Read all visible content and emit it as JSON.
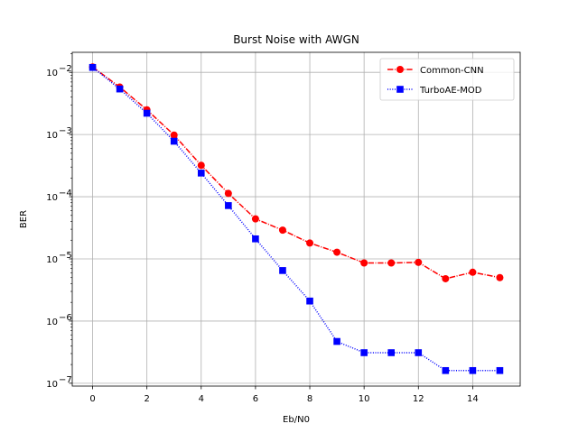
{
  "chart_data": {
    "type": "line",
    "title": "Burst Noise with AWGN",
    "xlabel": "Eb/N0",
    "ylabel": "BER",
    "yscale": "log",
    "xlim": [
      -0.75,
      15.75
    ],
    "ylim": [
      9e-08,
      0.021
    ],
    "xticks": [
      0,
      2,
      4,
      6,
      8,
      10,
      12,
      14
    ],
    "xtick_labels": [
      "0",
      "2",
      "4",
      "6",
      "8",
      "10",
      "12",
      "14"
    ],
    "yticks": [
      1e-07,
      1e-06,
      1e-05,
      0.0001,
      0.001,
      0.01
    ],
    "ytick_labels": [
      {
        "base": "10",
        "exp": "−7"
      },
      {
        "base": "10",
        "exp": "−6"
      },
      {
        "base": "10",
        "exp": "−5"
      },
      {
        "base": "10",
        "exp": "−4"
      },
      {
        "base": "10",
        "exp": "−3"
      },
      {
        "base": "10",
        "exp": "−2"
      }
    ],
    "grid": true,
    "legend_position": "upper right",
    "x": [
      0,
      1,
      2,
      3,
      4,
      5,
      6,
      7,
      8,
      9,
      10,
      11,
      12,
      13,
      14,
      15
    ],
    "series": [
      {
        "name": "Common-CNN",
        "color": "#ff0000",
        "linestyle": "dashdot",
        "marker": "circle",
        "values": [
          0.0122,
          0.0058,
          0.0025,
          0.00098,
          0.00032,
          0.000113,
          4.4e-05,
          2.9e-05,
          1.8e-05,
          1.28e-05,
          8.6e-06,
          8.6e-06,
          8.8e-06,
          4.8e-06,
          6.1e-06,
          5e-06
        ]
      },
      {
        "name": "TurboAE-MOD",
        "color": "#0000ff",
        "linestyle": "dotted",
        "marker": "square",
        "values": [
          0.012,
          0.0054,
          0.0022,
          0.00078,
          0.00024,
          7.2e-05,
          2.1e-05,
          6.5e-06,
          2.1e-06,
          4.7e-07,
          3.1e-07,
          3.1e-07,
          3.1e-07,
          1.6e-07,
          1.6e-07,
          1.6e-07
        ]
      }
    ]
  }
}
